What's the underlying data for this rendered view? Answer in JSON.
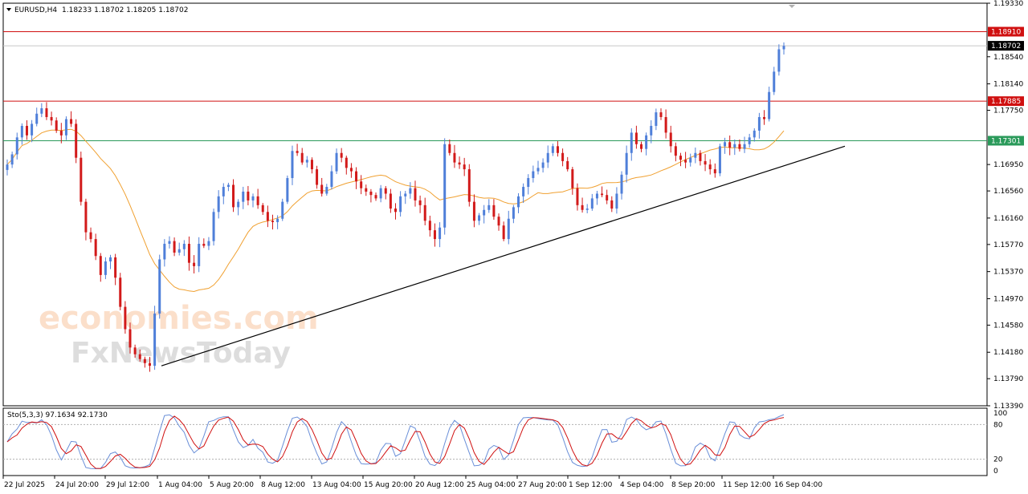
{
  "header": {
    "symbol": "EURUSD,H4",
    "ohlc": "1.18233 1.18702 1.18205 1.18702"
  },
  "indicator": {
    "label": "Sto(5,3,3) 97.1634 92.1730",
    "levels": [
      "100",
      "80",
      "20",
      "0"
    ]
  },
  "watermark": {
    "line1": "economies.com",
    "line2": "FxNewsToday"
  },
  "colors": {
    "bull": "#4f7fd9",
    "bear": "#d21a1a",
    "ma": "#f0a030",
    "resistance": "#d01010",
    "support": "#2a9a5a",
    "trendline": "#000000",
    "stoch_main": "#6a8fd8",
    "stoch_signal": "#d01010",
    "current": "#000000"
  },
  "chart_data": {
    "type": "line",
    "title": "EURUSD,H4",
    "x_tick_labels": [
      "22 Jul 2025",
      "24 Jul 20:00",
      "29 Jul 12:00",
      "1 Aug 04:00",
      "5 Aug 20:00",
      "8 Aug 12:00",
      "13 Aug 04:00",
      "15 Aug 20:00",
      "20 Aug 12:00",
      "25 Aug 04:00",
      "27 Aug 20:00",
      "1 Sep 12:00",
      "4 Sep 04:00",
      "8 Sep 20:00",
      "11 Sep 12:00",
      "16 Sep 04:00"
    ],
    "y_tick_labels": [
      "1.19330",
      "1.18540",
      "1.18140",
      "1.17750",
      "1.16950",
      "1.16560",
      "1.16160",
      "1.15770",
      "1.15370",
      "1.14970",
      "1.14580",
      "1.14180",
      "1.13790",
      "1.13390"
    ],
    "ylim": [
      1.1339,
      1.1933
    ],
    "horizontal_levels": [
      {
        "name": "resistance-upper",
        "value": 1.1891,
        "label": "1.18910"
      },
      {
        "name": "resistance-lower",
        "value": 1.17885,
        "label": "1.17885"
      },
      {
        "name": "support",
        "value": 1.17301,
        "label": "1.17301"
      }
    ],
    "current_price": {
      "value": 1.18702,
      "label": "1.18702"
    },
    "trendline": {
      "start": {
        "x": "1 Aug 04:00",
        "y": 1.1398
      },
      "end": {
        "x": "17 Sep 12:00",
        "y": 1.1722
      }
    },
    "close_series": [
      1.1695,
      1.171,
      1.1735,
      1.1752,
      1.1738,
      1.1755,
      1.177,
      1.1778,
      1.1765,
      1.176,
      1.1745,
      1.1738,
      1.1762,
      1.1755,
      1.1705,
      1.164,
      1.1595,
      1.1585,
      1.156,
      1.1532,
      1.1552,
      1.1558,
      1.1528,
      1.1485,
      1.1452,
      1.1425,
      1.1415,
      1.1408,
      1.1402,
      1.1398,
      1.1475,
      1.1555,
      1.1578,
      1.1582,
      1.1565,
      1.157,
      1.1578,
      1.155,
      1.1545,
      1.1578,
      1.1575,
      1.1582,
      1.1625,
      1.1648,
      1.1662,
      1.1665,
      1.1632,
      1.164,
      1.1655,
      1.1642,
      1.1648,
      1.1635,
      1.1625,
      1.1612,
      1.161,
      1.1615,
      1.164,
      1.1675,
      1.1715,
      1.1712,
      1.1698,
      1.1702,
      1.1688,
      1.1665,
      1.1652,
      1.1662,
      1.1685,
      1.1712,
      1.1705,
      1.169,
      1.1685,
      1.167,
      1.166,
      1.1655,
      1.165,
      1.1645,
      1.166,
      1.1652,
      1.163,
      1.1625,
      1.1648,
      1.1652,
      1.166,
      1.1642,
      1.1635,
      1.1612,
      1.1598,
      1.1585,
      1.1602,
      1.1725,
      1.1712,
      1.1698,
      1.1695,
      1.1688,
      1.164,
      1.1612,
      1.162,
      1.1628,
      1.1635,
      1.1618,
      1.1605,
      1.1585,
      1.1615,
      1.1632,
      1.1648,
      1.1662,
      1.1675,
      1.1685,
      1.169,
      1.1698,
      1.1712,
      1.1722,
      1.1712,
      1.17,
      1.1688,
      1.166,
      1.1635,
      1.1628,
      1.163,
      1.1645,
      1.1652,
      1.165,
      1.1642,
      1.163,
      1.1652,
      1.168,
      1.1712,
      1.1742,
      1.1725,
      1.1718,
      1.1738,
      1.1752,
      1.1772,
      1.1765,
      1.1742,
      1.1722,
      1.1708,
      1.1702,
      1.1698,
      1.1705,
      1.1712,
      1.17,
      1.1695,
      1.1688,
      1.1682,
      1.1722,
      1.1728,
      1.172,
      1.1725,
      1.1718,
      1.1725,
      1.1735,
      1.1745,
      1.1765,
      1.1762,
      1.1802,
      1.1832,
      1.1865,
      1.187
    ],
    "ma_label": "moving average",
    "stochastic": {
      "k": 97.1634,
      "d": 92.173,
      "levels": [
        20,
        80
      ]
    }
  }
}
